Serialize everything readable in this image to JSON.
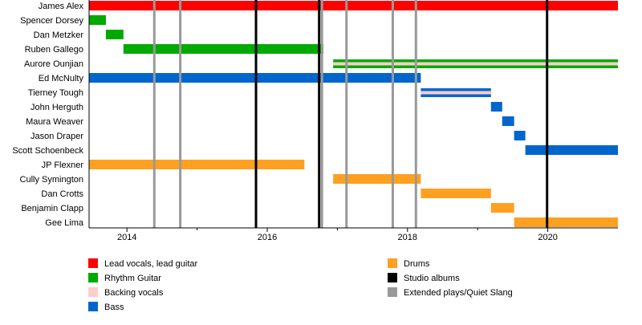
{
  "chart_data": {
    "type": "timeline",
    "xlim": [
      2013.46,
      2021.0
    ],
    "x_ticks": [
      "2014",
      "2016",
      "2018",
      "2020"
    ],
    "colors": {
      "Lead vocals, lead guitar": "#ff0000",
      "Rhythm Guitar": "#00aa00",
      "Backing vocals": "#ffcccc",
      "Bass": "#0066cc",
      "Drums": "#ffa020",
      "Studio albums": "#000000",
      "Extended plays/Quiet Slang": "#999999"
    },
    "members": [
      {
        "name": "James Alex",
        "bars": [
          {
            "role": "Lead vocals, lead guitar",
            "start": 2013.46,
            "end": 2021.0
          }
        ]
      },
      {
        "name": "Spencer Dorsey",
        "bars": [
          {
            "role": "Rhythm Guitar",
            "start": 2013.46,
            "end": 2013.7
          }
        ]
      },
      {
        "name": "Dan Metzker",
        "bars": [
          {
            "role": "Rhythm Guitar",
            "start": 2013.7,
            "end": 2013.95
          }
        ]
      },
      {
        "name": "Ruben Gallego",
        "bars": [
          {
            "role": "Rhythm Guitar",
            "start": 2013.95,
            "end": 2016.8
          }
        ]
      },
      {
        "name": "Aurore Ounjian",
        "bars": [
          {
            "role": "Rhythm Guitar",
            "start": 2016.94,
            "end": 2021.0,
            "stripe": "Backing vocals"
          }
        ]
      },
      {
        "name": "Ed McNulty",
        "bars": [
          {
            "role": "Bass",
            "start": 2013.46,
            "end": 2018.19
          }
        ]
      },
      {
        "name": "Tierney Tough",
        "bars": [
          {
            "role": "Bass",
            "start": 2018.19,
            "end": 2019.19,
            "stripe": "Backing vocals"
          }
        ]
      },
      {
        "name": "John Herguth",
        "bars": [
          {
            "role": "Bass",
            "start": 2019.19,
            "end": 2019.35
          }
        ]
      },
      {
        "name": "Maura Weaver",
        "bars": [
          {
            "role": "Bass",
            "start": 2019.35,
            "end": 2019.52
          }
        ]
      },
      {
        "name": "Jason Draper",
        "bars": [
          {
            "role": "Bass",
            "start": 2019.52,
            "end": 2019.68
          }
        ]
      },
      {
        "name": "Scott Schoenbeck",
        "bars": [
          {
            "role": "Bass",
            "start": 2019.68,
            "end": 2021.0
          }
        ]
      },
      {
        "name": "JP Flexner",
        "bars": [
          {
            "role": "Drums",
            "start": 2013.46,
            "end": 2016.53
          }
        ]
      },
      {
        "name": "Cully Symington",
        "bars": [
          {
            "role": "Drums",
            "start": 2016.94,
            "end": 2018.19
          }
        ]
      },
      {
        "name": "Dan Crotts",
        "bars": [
          {
            "role": "Drums",
            "start": 2018.19,
            "end": 2019.19
          }
        ]
      },
      {
        "name": "Benjamin Clapp",
        "bars": [
          {
            "role": "Drums",
            "start": 2019.19,
            "end": 2019.52
          }
        ]
      },
      {
        "name": "Gee Lima",
        "bars": [
          {
            "role": "Drums",
            "start": 2019.52,
            "end": 2021.0
          }
        ]
      }
    ],
    "events": [
      {
        "type": "Extended plays/Quiet Slang",
        "x": 2014.39
      },
      {
        "type": "Extended plays/Quiet Slang",
        "x": 2014.76
      },
      {
        "type": "Studio albums",
        "x": 2015.84
      },
      {
        "type": "Studio albums",
        "x": 2016.74
      },
      {
        "type": "Extended plays/Quiet Slang",
        "x": 2016.78
      },
      {
        "type": "Extended plays/Quiet Slang",
        "x": 2017.13
      },
      {
        "type": "Extended plays/Quiet Slang",
        "x": 2017.79
      },
      {
        "type": "Extended plays/Quiet Slang",
        "x": 2018.12
      },
      {
        "type": "Studio albums",
        "x": 2019.99
      }
    ],
    "legend": [
      [
        "Lead vocals, lead guitar",
        "Rhythm Guitar",
        "Backing vocals",
        "Bass"
      ],
      [
        "Drums",
        "Studio albums",
        "Extended plays/Quiet Slang"
      ]
    ]
  }
}
